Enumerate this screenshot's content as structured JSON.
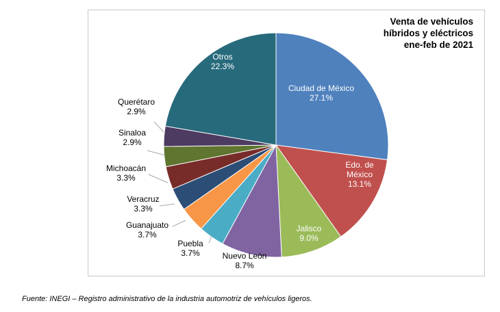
{
  "chart_data": {
    "type": "pie",
    "title": [
      "Venta de vehículos",
      "híbridos y eléctricos",
      "ene-feb de 2021"
    ],
    "slices": [
      {
        "label": "Ciudad de México",
        "value": 27.1,
        "value_label": "27.1%",
        "color": "#4f81bd"
      },
      {
        "label": "Edo. de México",
        "value": 13.1,
        "value_label": "13.1%",
        "color": "#c0504d"
      },
      {
        "label": "Jalisco",
        "value": 9.0,
        "value_label": "9.0%",
        "color": "#9bbb59"
      },
      {
        "label": "Nuevo León",
        "value": 8.7,
        "value_label": "8.7%",
        "color": "#8064a2"
      },
      {
        "label": "Puebla",
        "value": 3.7,
        "value_label": "3.7%",
        "color": "#4bacc6"
      },
      {
        "label": "Guanajuato",
        "value": 3.7,
        "value_label": "3.7%",
        "color": "#f79646"
      },
      {
        "label": "Veracruz",
        "value": 3.3,
        "value_label": "3.3%",
        "color": "#2c4d75"
      },
      {
        "label": "Michoacán",
        "value": 3.3,
        "value_label": "3.3%",
        "color": "#772c2a"
      },
      {
        "label": "Sinaloa",
        "value": 2.9,
        "value_label": "2.9%",
        "color": "#5f7530"
      },
      {
        "label": "Querétaro",
        "value": 2.9,
        "value_label": "2.9%",
        "color": "#4d3b62"
      },
      {
        "label": "Otros",
        "value": 22.3,
        "value_label": "22.3%",
        "color": "#276a7c"
      }
    ]
  },
  "source_note": "Fuente: INEGI – Registro administrativo de la industria automotriz de vehículos ligeros."
}
